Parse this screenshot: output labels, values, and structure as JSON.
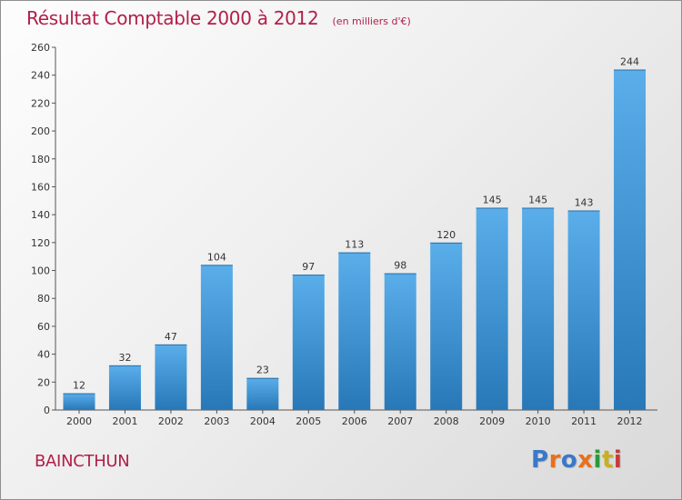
{
  "header": {
    "title": "Résultat Comptable 2000 à 2012",
    "subtitle": "(en milliers d'€)"
  },
  "footer": {
    "commune": "BAINCTHUN",
    "logo_text": "Proxiti"
  },
  "colors": {
    "title": "#b0204a",
    "bar_top": "#5aaeea",
    "bar_bottom": "#2878b8",
    "logo_letters": [
      "#3a78c8",
      "#e8701c",
      "#3a78c8",
      "#e8701c",
      "#2a9a38",
      "#c8b020",
      "#c83a3a"
    ]
  },
  "chart_data": {
    "type": "bar",
    "title": "Résultat Comptable 2000 à 2012",
    "subtitle": "(en milliers d'€)",
    "xlabel": "",
    "ylabel": "",
    "categories": [
      "2000",
      "2001",
      "2002",
      "2003",
      "2004",
      "2005",
      "2006",
      "2007",
      "2008",
      "2009",
      "2010",
      "2011",
      "2012"
    ],
    "values": [
      12,
      32,
      47,
      104,
      23,
      97,
      113,
      98,
      120,
      145,
      145,
      143,
      244
    ],
    "data_labels": [
      "12",
      "32",
      "47",
      "104",
      "23",
      "97",
      "113",
      "98",
      "120",
      "145",
      "145",
      "143",
      "244"
    ],
    "ylim": [
      0,
      260
    ],
    "yticks": [
      "0",
      "20",
      "40",
      "60",
      "80",
      "100",
      "120",
      "140",
      "160",
      "180",
      "200",
      "220",
      "240",
      "260"
    ],
    "grid": false,
    "legend": "none"
  }
}
